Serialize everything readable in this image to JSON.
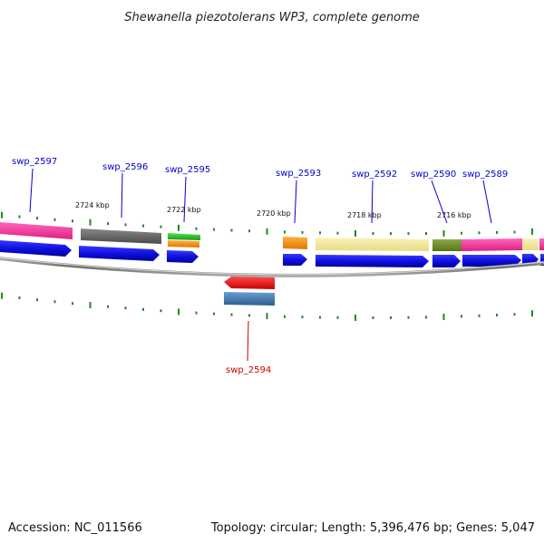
{
  "title": "Shewanella piezotolerans WP3, complete genome",
  "footer": {
    "accession": "Accession: NC_011566",
    "summary": "Topology: circular; Length: 5,396,476 bp; Genes: 5,047"
  },
  "colors": {
    "forward_label": "#0000cc",
    "reverse_label": "#cc0000",
    "tick": "#228822",
    "backbone": "#808080",
    "cds": "#1414e6"
  },
  "positions": [
    {
      "label": "2724 kbp"
    },
    {
      "label": "2722 kbp"
    },
    {
      "label": "2720 kbp"
    },
    {
      "label": "2718 kbp"
    },
    {
      "label": "2716 kbp"
    }
  ],
  "genes": [
    {
      "label": "swp_2597",
      "strand": "forward"
    },
    {
      "label": "swp_2596",
      "strand": "forward"
    },
    {
      "label": "swp_2595",
      "strand": "forward"
    },
    {
      "label": "swp_2593",
      "strand": "forward"
    },
    {
      "label": "swp_2592",
      "strand": "forward"
    },
    {
      "label": "swp_2590",
      "strand": "forward"
    },
    {
      "label": "swp_2589",
      "strand": "forward"
    },
    {
      "label": "swp_2594",
      "strand": "reverse"
    }
  ]
}
